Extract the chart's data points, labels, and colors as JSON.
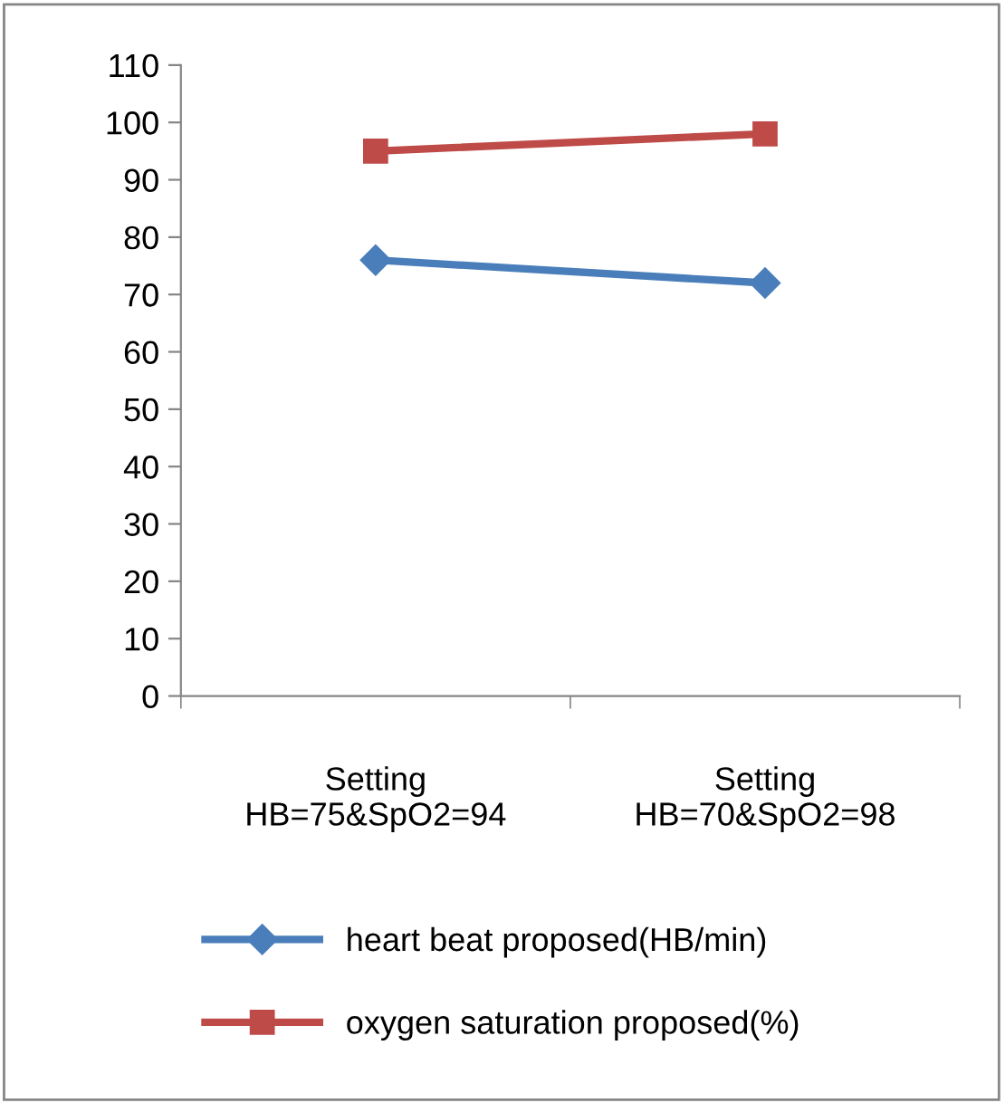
{
  "chart_data": {
    "type": "line",
    "categories": [
      "Setting\nHB=75&SpO2=94",
      "Setting\nHB=70&SpO2=98"
    ],
    "series": [
      {
        "name": "heart beat proposed(HB/min)",
        "color": "#4a7ebb",
        "marker": "diamond",
        "values": [
          76,
          72
        ]
      },
      {
        "name": "oxygen saturation proposed(%)",
        "color": "#be4b48",
        "marker": "square",
        "values": [
          95,
          98
        ]
      }
    ],
    "ylim": [
      0,
      110
    ],
    "yticks": [
      0,
      10,
      20,
      30,
      40,
      50,
      60,
      70,
      80,
      90,
      100,
      110
    ],
    "grid": false,
    "legend": "bottom",
    "line_style": "solid"
  }
}
